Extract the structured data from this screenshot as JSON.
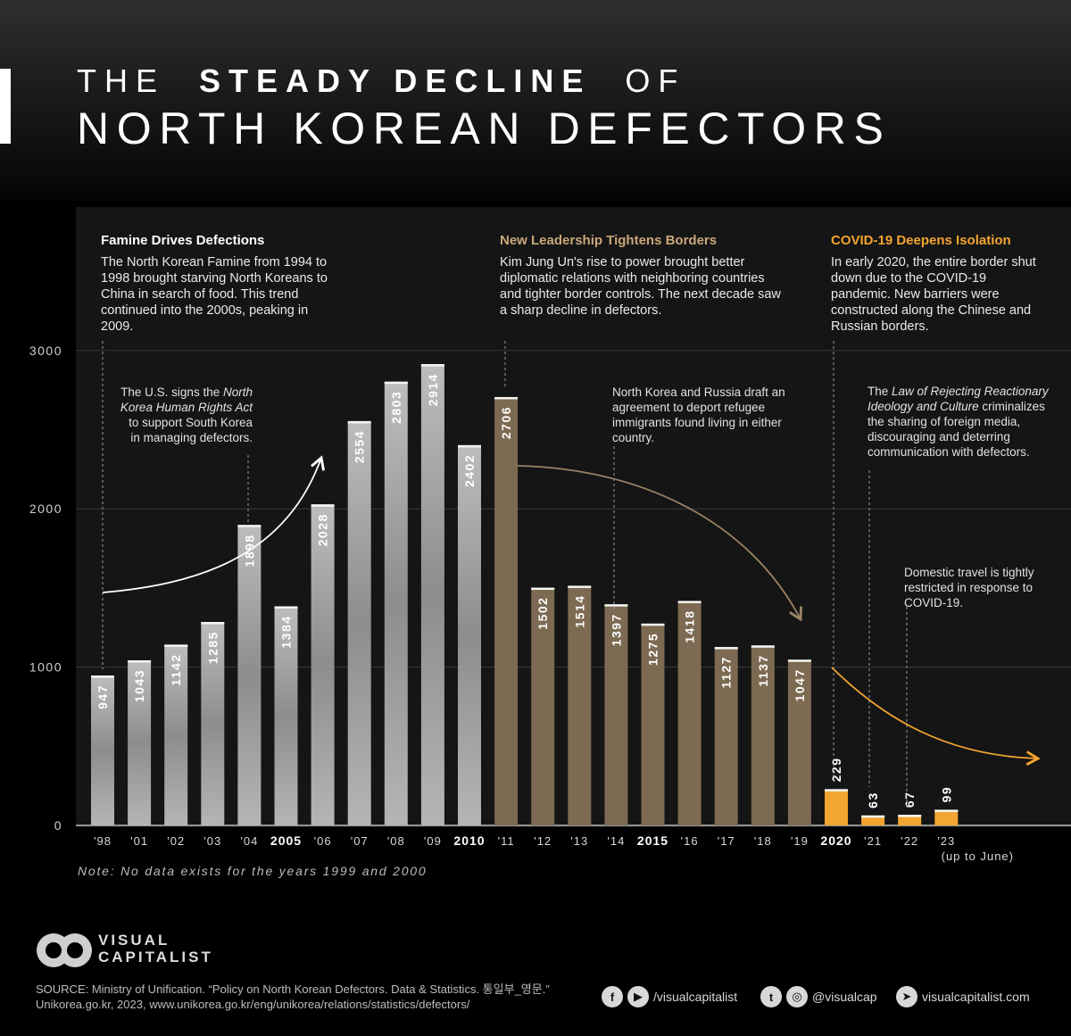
{
  "title": {
    "line1_a": "THE",
    "line1_b": "STEADY DECLINE",
    "line1_c": "OF",
    "line2": "NORTH KOREAN DEFECTORS"
  },
  "colors": {
    "famine": "#9c9c9c",
    "leadership": "#7d6a52",
    "covid": "#f2a530",
    "leadership_text": "#c9a77a",
    "covid_text": "#f2a530"
  },
  "panels": [
    {
      "heading": "Famine Drives Defections",
      "body": "The North Korean Famine from 1994 to 1998 brought starving North Koreans to China in search of food. This trend continued into the 2000s, peaking in 2009."
    },
    {
      "heading": "New Leadership Tightens Borders",
      "body": "Kim Jung Un's rise to power brought better diplomatic relations with neighboring countries and tighter border controls. The next decade saw a sharp decline in defectors."
    },
    {
      "heading": "COVID-19 Deepens Isolation",
      "body": "In early 2020, the entire border shut down due to the COVID-19 pandemic. New barriers were constructed along the Chinese and Russian borders."
    }
  ],
  "annotations": {
    "us_act": {
      "before": "The U.S. signs the",
      "italic": "North Korea Human Rights Act",
      "after": "to support South Korea in managing defectors."
    },
    "russia": "North Korea and Russia draft an agreement to deport refugee immigrants found living in either country.",
    "law": {
      "before": "The",
      "italic": "Law of Rejecting Reactionary Ideology and Culture",
      "after": "criminalizes the sharing of foreign media, discouraging and deterring communication with defectors."
    },
    "domestic": "Domestic travel is tightly restricted in response to COVID-19."
  },
  "chart_data": {
    "type": "bar",
    "title": "The Steady Decline of North Korean Defectors",
    "categories": [
      "'98",
      "'01",
      "'02",
      "'03",
      "'04",
      "2005",
      "'06",
      "'07",
      "'08",
      "'09",
      "2010",
      "'11",
      "'12",
      "'13",
      "'14",
      "2015",
      "'16",
      "'17",
      "'18",
      "'19",
      "2020",
      "'21",
      "'22",
      "'23"
    ],
    "values": [
      947,
      1043,
      1142,
      1285,
      1898,
      1384,
      2028,
      2554,
      2803,
      2914,
      2402,
      2706,
      1502,
      1514,
      1397,
      1275,
      1418,
      1127,
      1137,
      1047,
      229,
      63,
      67,
      99
    ],
    "era": [
      "famine",
      "famine",
      "famine",
      "famine",
      "famine",
      "famine",
      "famine",
      "famine",
      "famine",
      "famine",
      "famine",
      "leadership",
      "leadership",
      "leadership",
      "leadership",
      "leadership",
      "leadership",
      "leadership",
      "leadership",
      "leadership",
      "covid",
      "covid",
      "covid",
      "covid"
    ],
    "major_ticks": [
      "2005",
      "2010",
      "2015",
      "2020"
    ],
    "sublabel_last": "(up to June)",
    "ylim": [
      0,
      3000
    ],
    "yticks": [
      0,
      1000,
      2000,
      3000
    ],
    "xlabel": "",
    "ylabel": "",
    "grid": true
  },
  "note": "Note: No data exists for the years 1999 and 2000",
  "brand": {
    "line1": "VISUAL",
    "line2": "CAPITALIST"
  },
  "source": "SOURCE: Ministry of Unification. “Policy on North Korean Defectors. Data & Statistics. 통일부_영문.” Unikorea.go.kr, 2023, www.unikorea.go.kr/eng/unikorea/relations/statistics/defectors/",
  "social": {
    "handle1": "/visualcapitalist",
    "handle2": "@visualcap",
    "site": "visualcapitalist.com"
  }
}
